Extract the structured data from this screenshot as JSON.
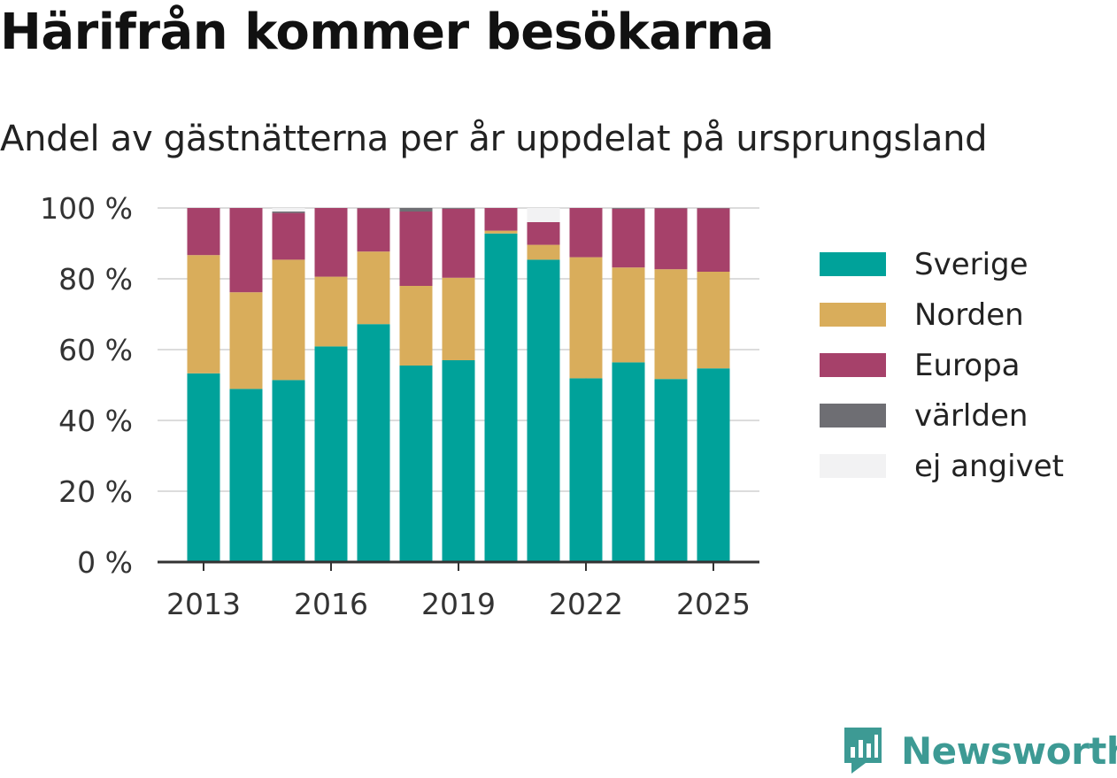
{
  "title": "Härifrån kommer besökarna",
  "subtitle": "Andel av gästnätterna per år uppdelat på ursprungsland",
  "brand": {
    "name": "Newsworthy",
    "icon": "newsworthy-logo-icon",
    "color": "#3d9a94"
  },
  "chart_data": {
    "type": "bar",
    "stacked": true,
    "categories": [
      "2013",
      "2014",
      "2015",
      "2016",
      "2017",
      "2018",
      "2019",
      "2020",
      "2021",
      "2022",
      "2023",
      "2024",
      "2025"
    ],
    "x_tick_labels": [
      "2013",
      "2016",
      "2019",
      "2022",
      "2025"
    ],
    "y_ticks": [
      0,
      20,
      40,
      60,
      80,
      100
    ],
    "y_tick_labels": [
      "0 %",
      "20 %",
      "40 %",
      "60 %",
      "80 %",
      "100 %"
    ],
    "ylim": [
      0,
      100
    ],
    "grid": true,
    "legend_position": "right",
    "series": [
      {
        "name": "Sverige",
        "color": "#00a29a",
        "values": [
          53.3,
          48.9,
          51.4,
          60.9,
          67.2,
          55.5,
          57.0,
          92.8,
          85.4,
          51.9,
          56.4,
          51.7,
          54.7
        ]
      },
      {
        "name": "Norden",
        "color": "#d9ad5b",
        "values": [
          33.4,
          27.3,
          34.0,
          19.7,
          20.5,
          22.5,
          23.3,
          0.8,
          4.2,
          34.2,
          26.8,
          31.0,
          27.3
        ]
      },
      {
        "name": "Europa",
        "color": "#a6416a",
        "values": [
          13.3,
          23.8,
          13.2,
          19.4,
          12.2,
          21.0,
          19.5,
          6.4,
          6.4,
          13.9,
          16.6,
          17.2,
          17.9
        ]
      },
      {
        "name": "världen",
        "color": "#6e6e73",
        "values": [
          0,
          0,
          0.4,
          0,
          0.1,
          1.0,
          0.2,
          0,
          0,
          0,
          0.2,
          0.1,
          0.1
        ]
      },
      {
        "name": "ej angivet",
        "color": "#f2f2f3",
        "values": [
          0,
          0,
          1.0,
          0,
          0,
          0,
          0,
          0,
          4.0,
          0,
          0,
          0,
          0
        ]
      }
    ]
  }
}
